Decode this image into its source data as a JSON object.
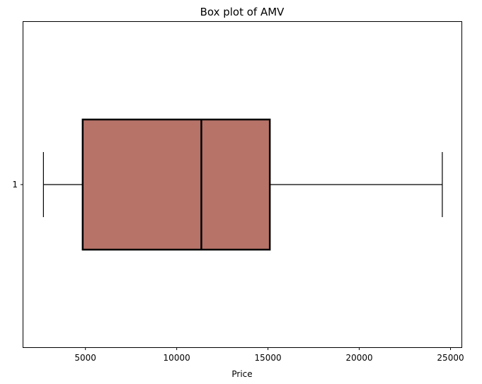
{
  "chart_data": {
    "type": "box",
    "orientation": "horizontal",
    "title": "Box plot of AMV",
    "xlabel": "Price",
    "ylabel": "",
    "xlim": [
      1600,
      25600
    ],
    "xticks": [
      5000,
      10000,
      15000,
      20000,
      25000
    ],
    "categories": [
      "1"
    ],
    "boxes": [
      {
        "label": "1",
        "whisker_low": 2700,
        "q1": 4850,
        "median": 11350,
        "q3": 15100,
        "whisker_high": 24550
      }
    ],
    "box_color": "#b87369",
    "edge_color": "#000000",
    "grid": false
  }
}
